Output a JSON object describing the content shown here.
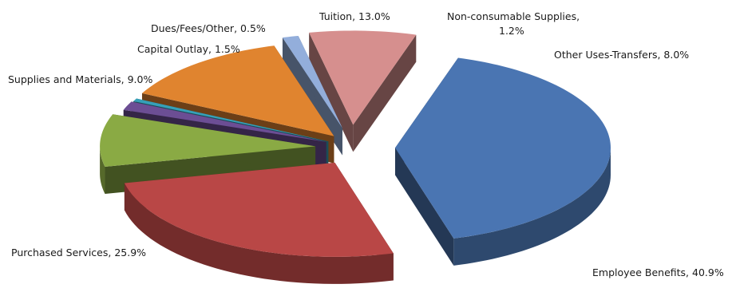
{
  "chart_data": {
    "type": "pie",
    "style": "3d-exploded",
    "legend": "none",
    "slices": [
      {
        "category": "Employee Benefits",
        "value": 40.9,
        "label": "Employee Benefits, 40.9%",
        "color": "#4a75b2"
      },
      {
        "category": "Purchased Services",
        "value": 25.9,
        "label": "Purchased Services, 25.9%",
        "color": "#b94746"
      },
      {
        "category": "Supplies and Materials",
        "value": 9.0,
        "label": "Supplies and Materials, 9.0%",
        "color": "#8aaa44"
      },
      {
        "category": "Capital Outlay",
        "value": 1.5,
        "label": "Capital Outlay, 1.5%",
        "color": "#6c4e94"
      },
      {
        "category": "Dues/Fees/Other",
        "value": 0.5,
        "label": "Dues/Fees/Other, 0.5%",
        "color": "#36a0b8"
      },
      {
        "category": "Tuition",
        "value": 13.0,
        "label": "Tuition, 13.0%",
        "color": "#e0842f"
      },
      {
        "category": "Non-consumable Supplies",
        "value": 1.2,
        "label_lines": [
          "Non-consumable Supplies,",
          "1.2%"
        ],
        "color": "#93aedb"
      },
      {
        "category": "Other Uses-Transfers",
        "value": 8.0,
        "label": "Other Uses-Transfers, 8.0%",
        "color": "#d68f8e"
      }
    ]
  }
}
